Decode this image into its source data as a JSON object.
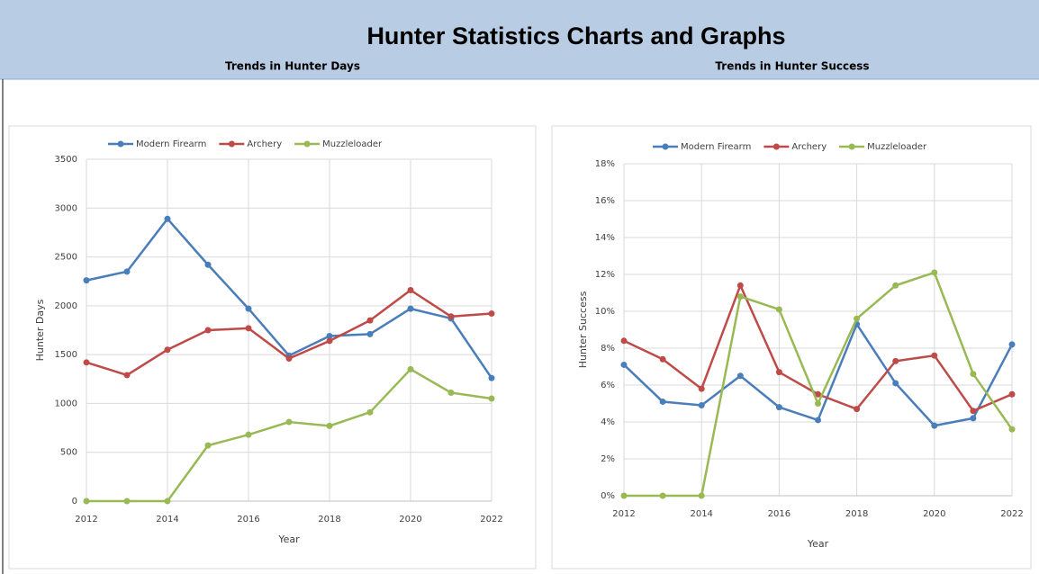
{
  "header": {
    "title": "Hunter Statistics Charts and Graphs"
  },
  "chart_data": [
    {
      "type": "line",
      "title": "Trends in Hunter Days",
      "x_label": "Year",
      "y_label": "Hunter Days",
      "x": [
        2012,
        2013,
        2014,
        2015,
        2016,
        2017,
        2018,
        2019,
        2020,
        2021,
        2022
      ],
      "xlim": [
        2012,
        2022
      ],
      "xticks": [
        2012,
        2014,
        2016,
        2018,
        2020,
        2022
      ],
      "ylim": [
        0,
        3500
      ],
      "yticks": [
        0,
        500,
        1000,
        1500,
        2000,
        2500,
        3000,
        3500
      ],
      "grid": true,
      "legend": "top",
      "series": [
        {
          "name": "Modern Firearm",
          "color": "#4a7ebb",
          "values": [
            2260,
            2350,
            2890,
            2420,
            1970,
            1490,
            1690,
            1710,
            1970,
            1870,
            1260
          ]
        },
        {
          "name": "Archery",
          "color": "#be4b48",
          "values": [
            1420,
            1290,
            1550,
            1750,
            1770,
            1460,
            1640,
            1850,
            2160,
            1890,
            1920
          ]
        },
        {
          "name": "Muzzleloader",
          "color": "#98b954",
          "values": [
            0,
            0,
            0,
            570,
            680,
            810,
            770,
            910,
            1350,
            1110,
            1050
          ]
        }
      ]
    },
    {
      "type": "line",
      "title": "Trends in Hunter Success",
      "x_label": "Year",
      "y_label": "Hunter Success",
      "x": [
        2012,
        2013,
        2014,
        2015,
        2016,
        2017,
        2018,
        2019,
        2020,
        2021,
        2022
      ],
      "xlim": [
        2012,
        2022
      ],
      "xticks": [
        2012,
        2014,
        2016,
        2018,
        2020,
        2022
      ],
      "ylim": [
        0,
        18
      ],
      "yticks": [
        {
          "value": 0,
          "label": "0%"
        },
        {
          "value": 2,
          "label": "2%"
        },
        {
          "value": 4,
          "label": "4%"
        },
        {
          "value": 6,
          "label": "6%"
        },
        {
          "value": 8,
          "label": "8%"
        },
        {
          "value": 10,
          "label": "10%"
        },
        {
          "value": 12,
          "label": "12%"
        },
        {
          "value": 14,
          "label": "14%"
        },
        {
          "value": 16,
          "label": "16%"
        },
        {
          "value": 18,
          "label": "18%"
        }
      ],
      "grid": true,
      "legend": "top",
      "series": [
        {
          "name": "Modern Firearm",
          "color": "#4a7ebb",
          "values": [
            7.1,
            5.1,
            4.9,
            6.5,
            4.8,
            4.1,
            9.3,
            6.1,
            3.8,
            4.2,
            8.2
          ]
        },
        {
          "name": "Archery",
          "color": "#be4b48",
          "values": [
            8.4,
            7.4,
            5.8,
            11.4,
            6.7,
            5.5,
            4.7,
            7.3,
            7.6,
            4.6,
            5.5
          ]
        },
        {
          "name": "Muzzleloader",
          "color": "#98b954",
          "values": [
            0,
            0,
            0,
            10.8,
            10.1,
            5.0,
            9.6,
            11.4,
            12.1,
            6.6,
            3.6
          ]
        }
      ]
    }
  ]
}
